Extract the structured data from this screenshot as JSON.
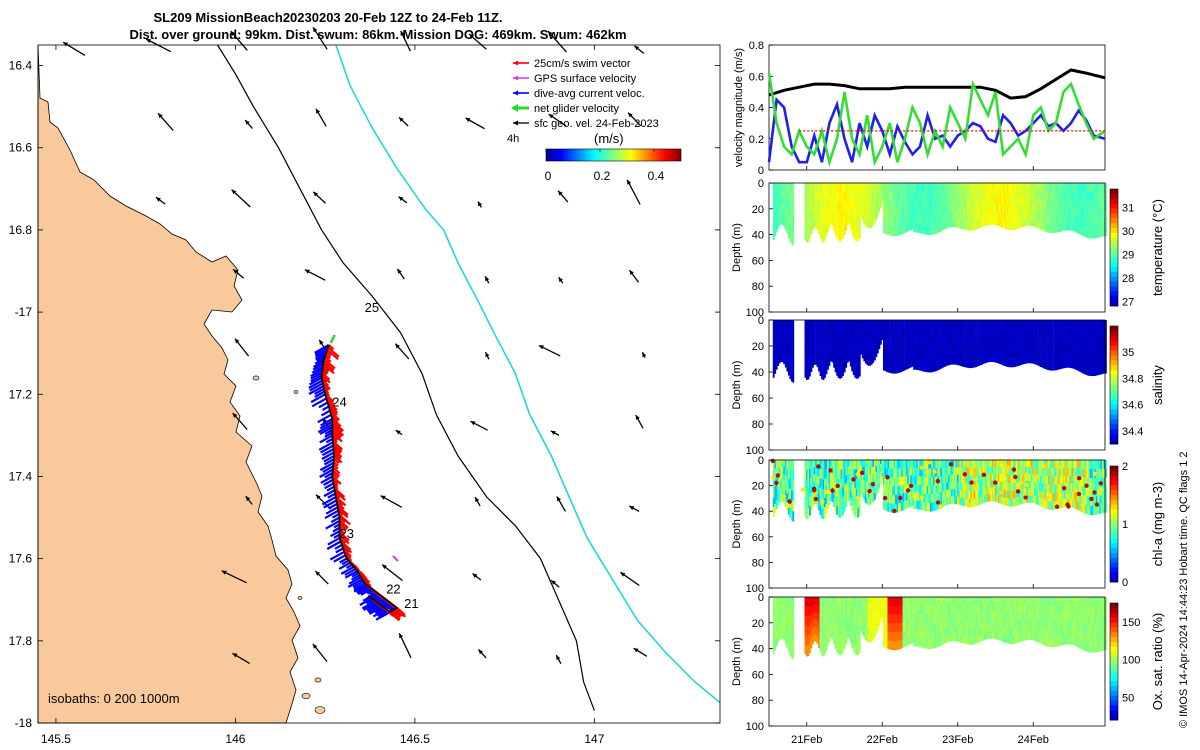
{
  "title": {
    "line1": "SL209 MissionBeach20230203 20-Feb 12Z to 24-Feb 11Z.",
    "line2": "Dist. over ground: 99km. Dist. swum: 86km. Mission DOG: 469km. Swum: 462km"
  },
  "watermark": "© IMOS 14-Apr-2024 14:44:23 Hobart time. QC flags 1  2",
  "colors": {
    "land": "#f9c99b",
    "iso_200": "#000000",
    "iso_1000": "#22d8d8",
    "swim": "#ff0000",
    "gps": "#d63de6",
    "dive_avg": "#0000ff",
    "net": "#22dd22",
    "sfc": "#000000",
    "track": "#000000"
  },
  "chart_data": [
    {
      "type": "map",
      "name": "glider-track-map",
      "xlim": [
        145.45,
        147.35
      ],
      "ylim": [
        -18.0,
        -16.35
      ],
      "x_ticks": [
        145.5,
        146,
        146.5,
        147
      ],
      "x_tick_labels": [
        "145.5",
        "146",
        "146.5",
        "147"
      ],
      "y_ticks": [
        -16.4,
        -16.6,
        -16.8,
        -17,
        -17.2,
        -17.4,
        -17.6,
        -17.8,
        -18
      ],
      "y_tick_labels": [
        "16.4",
        "16.6",
        "16.8",
        "-17",
        "17.2",
        "17.4",
        "17.6",
        "17.8",
        "-18"
      ],
      "legend": {
        "location": "top-right",
        "entries": [
          {
            "label": "25cm/s swim vector",
            "color": "#ff0000"
          },
          {
            "label": "GPS surface velocity",
            "color": "#d63de6"
          },
          {
            "label": "dive-avg current veloc.",
            "color": "#0000ff"
          },
          {
            "label": "net glider velocity",
            "color": "#22dd22"
          },
          {
            "label": "sfc geo. vel. 24-Feb-2023",
            "color": "#000000"
          }
        ],
        "scale_label": "4h"
      },
      "colorbar": {
        "label": "(m/s)",
        "ticks": [
          0,
          0.2,
          0.4
        ],
        "tick_labels": [
          "0",
          "0.2",
          "0.4"
        ],
        "range": [
          0,
          0.5
        ]
      },
      "isobath_label": "isobaths: 0   200  1000m",
      "day_labels": [
        {
          "text": "21",
          "lon": 146.47,
          "lat": -17.72
        },
        {
          "text": "22",
          "lon": 146.42,
          "lat": -17.685
        },
        {
          "text": "23",
          "lon": 146.29,
          "lat": -17.55
        },
        {
          "text": "24",
          "lon": 146.27,
          "lat": -17.23
        },
        {
          "text": "25",
          "lon": 146.36,
          "lat": -17.0
        }
      ],
      "track": [
        [
          146.26,
          -17.08
        ],
        [
          146.245,
          -17.12
        ],
        [
          146.24,
          -17.16
        ],
        [
          146.25,
          -17.2
        ],
        [
          146.27,
          -17.26
        ],
        [
          146.27,
          -17.3
        ],
        [
          146.275,
          -17.35
        ],
        [
          146.27,
          -17.4
        ],
        [
          146.28,
          -17.45
        ],
        [
          146.29,
          -17.5
        ],
        [
          146.29,
          -17.55
        ],
        [
          146.31,
          -17.6
        ],
        [
          146.34,
          -17.63
        ],
        [
          146.36,
          -17.66
        ],
        [
          146.39,
          -17.68
        ],
        [
          146.42,
          -17.7
        ],
        [
          146.45,
          -17.72
        ],
        [
          146.43,
          -17.73
        ],
        [
          146.4,
          -17.71
        ],
        [
          146.37,
          -17.69
        ]
      ],
      "isobath_200": [
        [
          145.95,
          -16.35
        ],
        [
          146.0,
          -16.42
        ],
        [
          146.05,
          -16.5
        ],
        [
          146.12,
          -16.6
        ],
        [
          146.18,
          -16.7
        ],
        [
          146.24,
          -16.8
        ],
        [
          146.3,
          -16.88
        ],
        [
          146.38,
          -16.96
        ],
        [
          146.46,
          -17.05
        ],
        [
          146.52,
          -17.15
        ],
        [
          146.56,
          -17.25
        ],
        [
          146.62,
          -17.35
        ],
        [
          146.7,
          -17.45
        ],
        [
          146.78,
          -17.52
        ],
        [
          146.85,
          -17.6
        ],
        [
          146.9,
          -17.7
        ],
        [
          146.95,
          -17.8
        ],
        [
          146.97,
          -17.9
        ],
        [
          147.0,
          -17.97
        ]
      ],
      "isobath_1000": [
        [
          146.28,
          -16.35
        ],
        [
          146.32,
          -16.45
        ],
        [
          146.38,
          -16.55
        ],
        [
          146.45,
          -16.65
        ],
        [
          146.53,
          -16.75
        ],
        [
          146.58,
          -16.8
        ],
        [
          146.62,
          -16.88
        ],
        [
          146.68,
          -16.98
        ],
        [
          146.72,
          -17.05
        ],
        [
          146.78,
          -17.15
        ],
        [
          146.82,
          -17.25
        ],
        [
          146.88,
          -17.35
        ],
        [
          146.93,
          -17.45
        ],
        [
          146.98,
          -17.55
        ],
        [
          147.05,
          -17.65
        ],
        [
          147.12,
          -17.75
        ],
        [
          147.2,
          -17.83
        ],
        [
          147.28,
          -17.9
        ],
        [
          147.35,
          -17.95
        ]
      ]
    },
    {
      "type": "line",
      "name": "velocity-magnitude",
      "ylabel": "velocity magnitude (m/s)",
      "ylim": [
        0,
        0.8
      ],
      "y_ticks": [
        0,
        0.2,
        0.4,
        0.6,
        0.8
      ],
      "xlim": [
        20.5,
        24.95
      ],
      "series": [
        {
          "name": "swim speed",
          "color": "#000000",
          "style": "solid",
          "x": [
            20.5,
            20.7,
            20.9,
            21.1,
            21.3,
            21.5,
            21.7,
            21.9,
            22.1,
            22.3,
            22.5,
            22.7,
            22.9,
            23.1,
            23.3,
            23.5,
            23.7,
            23.9,
            24.1,
            24.3,
            24.5,
            24.7,
            24.95
          ],
          "y": [
            0.48,
            0.51,
            0.53,
            0.55,
            0.55,
            0.54,
            0.52,
            0.52,
            0.52,
            0.53,
            0.53,
            0.53,
            0.53,
            0.53,
            0.53,
            0.51,
            0.46,
            0.47,
            0.52,
            0.58,
            0.64,
            0.62,
            0.59
          ]
        },
        {
          "name": "dive-avg current",
          "color": "#2020ee",
          "style": "solid",
          "x": [
            20.5,
            20.6,
            20.7,
            20.8,
            20.9,
            21.0,
            21.1,
            21.2,
            21.3,
            21.4,
            21.5,
            21.6,
            21.7,
            21.8,
            21.9,
            22.0,
            22.1,
            22.2,
            22.3,
            22.4,
            22.5,
            22.6,
            22.7,
            22.8,
            22.9,
            23.0,
            23.1,
            23.2,
            23.3,
            23.4,
            23.5,
            23.6,
            23.7,
            23.8,
            23.9,
            24.0,
            24.1,
            24.2,
            24.3,
            24.4,
            24.5,
            24.6,
            24.7,
            24.8,
            24.95
          ],
          "y": [
            0.05,
            0.45,
            0.4,
            0.15,
            0.05,
            0.05,
            0.22,
            0.05,
            0.3,
            0.42,
            0.2,
            0.05,
            0.3,
            0.15,
            0.35,
            0.25,
            0.1,
            0.28,
            0.18,
            0.1,
            0.15,
            0.35,
            0.2,
            0.22,
            0.15,
            0.22,
            0.25,
            0.3,
            0.28,
            0.2,
            0.18,
            0.35,
            0.3,
            0.22,
            0.25,
            0.3,
            0.35,
            0.28,
            0.3,
            0.25,
            0.3,
            0.38,
            0.32,
            0.22,
            0.2
          ]
        },
        {
          "name": "net glider velocity",
          "color": "#33dd33",
          "style": "solid",
          "x": [
            20.5,
            20.6,
            20.7,
            20.8,
            20.9,
            21.0,
            21.1,
            21.2,
            21.3,
            21.4,
            21.5,
            21.6,
            21.7,
            21.8,
            21.9,
            22.0,
            22.1,
            22.2,
            22.3,
            22.4,
            22.5,
            22.6,
            22.7,
            22.8,
            22.9,
            23.0,
            23.1,
            23.2,
            23.3,
            23.4,
            23.5,
            23.6,
            23.7,
            23.8,
            23.9,
            24.0,
            24.1,
            24.2,
            24.3,
            24.4,
            24.5,
            24.6,
            24.7,
            24.8,
            24.95
          ],
          "y": [
            0.62,
            0.3,
            0.15,
            0.1,
            0.25,
            0.15,
            0.1,
            0.25,
            0.05,
            0.2,
            0.5,
            0.2,
            0.1,
            0.35,
            0.05,
            0.15,
            0.3,
            0.05,
            0.2,
            0.4,
            0.3,
            0.1,
            0.25,
            0.15,
            0.4,
            0.3,
            0.2,
            0.55,
            0.45,
            0.35,
            0.5,
            0.1,
            0.15,
            0.2,
            0.1,
            0.35,
            0.4,
            0.25,
            0.3,
            0.5,
            0.55,
            0.42,
            0.3,
            0.2,
            0.25
          ]
        },
        {
          "name": "25cm/s reference",
          "color": "#ff0000",
          "style": "dashed",
          "x": [
            20.9,
            24.95
          ],
          "y": [
            0.25,
            0.25
          ]
        }
      ]
    },
    {
      "type": "heatmap",
      "name": "temperature-section",
      "variable": "temperature",
      "cbar_label": "temperature (°C)",
      "cbar_ticks": [
        27,
        28,
        29,
        30,
        31
      ],
      "cbar_range": [
        26.8,
        31.8
      ],
      "value_typical": 29.8,
      "ylabel": "Depth (m)",
      "ylim": [
        0,
        100
      ],
      "y_ticks": [
        0,
        20,
        40,
        60,
        80,
        100
      ]
    },
    {
      "type": "heatmap",
      "name": "salinity-section",
      "variable": "salinity",
      "cbar_label": "salinity",
      "cbar_ticks": [
        34.4,
        34.6,
        34.8,
        35
      ],
      "cbar_range": [
        34.3,
        35.2
      ],
      "value_typical": 34.35,
      "ylabel": "Depth (m)",
      "ylim": [
        0,
        100
      ],
      "y_ticks": [
        0,
        20,
        40,
        60,
        80,
        100
      ]
    },
    {
      "type": "heatmap",
      "name": "chla-section",
      "variable": "chl-a",
      "cbar_label": "chl-a (mg m-3)",
      "cbar_ticks": [
        0,
        1,
        2
      ],
      "cbar_range": [
        0,
        2
      ],
      "value_typical": 1.0,
      "ylabel": "Depth (m)",
      "ylim": [
        0,
        100
      ],
      "y_ticks": [
        0,
        20,
        40,
        60,
        80,
        100
      ]
    },
    {
      "type": "heatmap",
      "name": "oxygen-section",
      "variable": "Ox. sat. ratio",
      "cbar_label": "Ox. sat. ratio (%)",
      "cbar_ticks": [
        50,
        100,
        150
      ],
      "cbar_range": [
        20,
        175
      ],
      "value_typical": 100,
      "ylabel": "Depth (m)",
      "ylim": [
        0,
        100
      ],
      "y_ticks": [
        0,
        20,
        40,
        60,
        80,
        100
      ],
      "x_ticks": [
        21,
        22,
        23,
        24
      ],
      "x_tick_labels": [
        "21Feb",
        "22Feb",
        "23Feb",
        "24Feb"
      ]
    }
  ]
}
